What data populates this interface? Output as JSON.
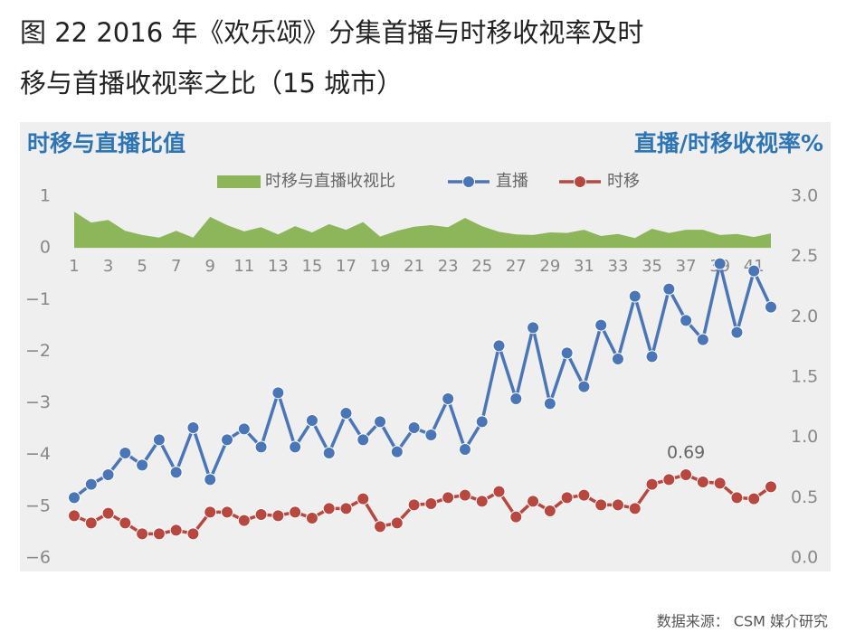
{
  "chart_data": {
    "type": "line",
    "title": [
      "图 22 2016 年《欢乐颂》分集首播与时移收视率及时",
      "移与首播收视率之比（15 城市）"
    ],
    "y_axis_title": "时移与直播比值",
    "y2_axis_title": "直播/时移收视率%",
    "source": "数据来源： CSM 媒介研究",
    "categories": [
      "1",
      null,
      "3",
      null,
      "5",
      null,
      "7",
      null,
      "9",
      null,
      "11",
      null,
      "13",
      null,
      "15",
      null,
      "17",
      null,
      "19",
      null,
      "21",
      null,
      "23",
      null,
      "25",
      null,
      "27",
      null,
      "29",
      null,
      "31",
      null,
      "33",
      null,
      "35",
      null,
      "37",
      null,
      "39",
      null,
      "41",
      null
    ],
    "ylim": [
      -6,
      1
    ],
    "yticks": [
      {
        "value": 1,
        "label": "1"
      },
      {
        "value": 0,
        "label": "0"
      },
      {
        "value": -1,
        "label": "−1"
      },
      {
        "value": -2,
        "label": "−2"
      },
      {
        "value": -3,
        "label": "−3"
      },
      {
        "value": -4,
        "label": "−4"
      },
      {
        "value": -5,
        "label": "−5"
      },
      {
        "value": -6,
        "label": "−6"
      }
    ],
    "y2lim": [
      0,
      3
    ],
    "y2ticks": [
      {
        "value": 3,
        "label": "3.0"
      },
      {
        "value": 2.5,
        "label": "2.5"
      },
      {
        "value": 2,
        "label": "2.0"
      },
      {
        "value": 1.5,
        "label": "1.5"
      },
      {
        "value": 1,
        "label": "1.0"
      },
      {
        "value": 0.5,
        "label": "0.5"
      },
      {
        "value": 0,
        "label": "0.0"
      }
    ],
    "grid": false,
    "series": [
      {
        "name": "时移与直播收视比",
        "type": "area",
        "color": "#8db65a",
        "values": [
          0.7,
          0.49,
          0.54,
          0.33,
          0.25,
          0.2,
          0.33,
          0.2,
          0.6,
          0.44,
          0.32,
          0.4,
          0.26,
          0.42,
          0.3,
          0.46,
          0.35,
          0.5,
          0.22,
          0.33,
          0.41,
          0.44,
          0.4,
          0.58,
          0.42,
          0.31,
          0.26,
          0.25,
          0.3,
          0.29,
          0.35,
          0.23,
          0.27,
          0.19,
          0.37,
          0.29,
          0.35,
          0.35,
          0.25,
          0.27,
          0.21,
          0.28
        ]
      },
      {
        "name": "直播",
        "type": "line",
        "axis": "y2",
        "color": "#4a76b8",
        "values": [
          0.5,
          0.61,
          0.69,
          0.87,
          0.77,
          0.98,
          0.71,
          1.08,
          0.65,
          0.98,
          1.07,
          0.92,
          1.37,
          0.92,
          1.14,
          0.87,
          1.2,
          0.98,
          1.13,
          0.88,
          1.08,
          1.02,
          1.32,
          0.9,
          1.13,
          1.76,
          1.32,
          1.91,
          1.28,
          1.7,
          1.42,
          1.93,
          1.65,
          2.17,
          1.67,
          2.23,
          1.97,
          1.81,
          2.44,
          1.87,
          2.38,
          2.08
        ]
      },
      {
        "name": "时移",
        "type": "line",
        "axis": "y2",
        "color": "#b8473f",
        "values": [
          0.35,
          0.29,
          0.37,
          0.29,
          0.2,
          0.2,
          0.23,
          0.2,
          0.38,
          0.38,
          0.31,
          0.36,
          0.35,
          0.38,
          0.33,
          0.41,
          0.41,
          0.49,
          0.26,
          0.29,
          0.44,
          0.45,
          0.5,
          0.52,
          0.47,
          0.55,
          0.34,
          0.47,
          0.39,
          0.5,
          0.52,
          0.44,
          0.44,
          0.41,
          0.61,
          0.65,
          0.69,
          0.63,
          0.62,
          0.5,
          0.49,
          0.59
        ],
        "value_labels": [
          null,
          null,
          null,
          null,
          null,
          null,
          null,
          null,
          null,
          null,
          null,
          null,
          null,
          null,
          null,
          null,
          null,
          null,
          null,
          null,
          null,
          null,
          null,
          null,
          null,
          null,
          null,
          null,
          null,
          null,
          null,
          null,
          null,
          null,
          null,
          null,
          "0.69",
          null,
          null,
          null,
          null,
          null
        ]
      }
    ]
  }
}
